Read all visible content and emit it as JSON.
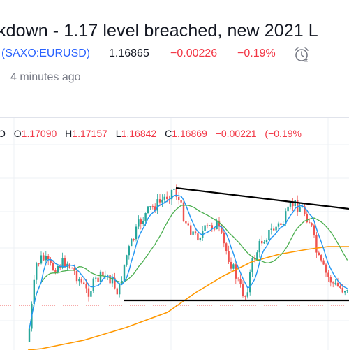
{
  "idea": {
    "title": "kdown - 1.17 level breached, new 2021 L",
    "symbol": "(SAXO:EURUSD)",
    "price": "1.16865",
    "change": "−0.00226",
    "change_pct": "−0.19%",
    "published": "4 minutes ago"
  },
  "legend": {
    "first": "O",
    "open_label": "O",
    "open": "1.17090",
    "high_label": "H",
    "high": "1.17157",
    "low_label": "L",
    "low": "1.16842",
    "close_label": "C",
    "close": "1.16869",
    "change": "−0.00221",
    "change_pct": "(−0.19%"
  },
  "icons": {
    "alarm": "alarm-clock-icon"
  },
  "colors": {
    "up": "#26a69a",
    "down": "#ef5350",
    "ma_blue": "#2196f3",
    "ma_green": "#4caf50",
    "ma_orange": "#ff9800",
    "trendline": "#000000",
    "negative_text": "#f23645",
    "symbol_link": "#2962ff"
  }
}
